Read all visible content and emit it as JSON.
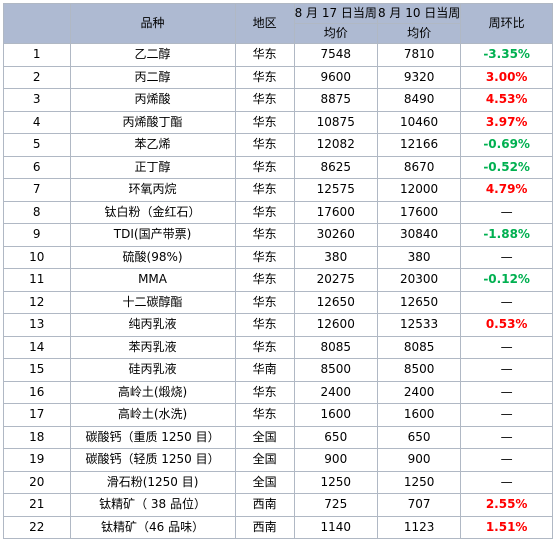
{
  "header": {
    "no": "",
    "product": "品种",
    "region": "地区",
    "week1_line1": "8 月 17 日当周",
    "week1_line2": "均价",
    "week2_line1": "8 月 10 日当周",
    "week2_line2": "均价",
    "change": "周环比"
  },
  "colors": {
    "up": "#ff0000",
    "down": "#00b050",
    "header_bg": "#aebad2"
  },
  "rows": [
    {
      "no": "1",
      "name": "乙二醇",
      "region": "华东",
      "p1": "7548",
      "p2": "7810",
      "chg": "-3.35%",
      "dir": "down"
    },
    {
      "no": "2",
      "name": "丙二醇",
      "region": "华东",
      "p1": "9600",
      "p2": "9320",
      "chg": "3.00%",
      "dir": "up"
    },
    {
      "no": "3",
      "name": "丙烯酸",
      "region": "华东",
      "p1": "8875",
      "p2": "8490",
      "chg": "4.53%",
      "dir": "up"
    },
    {
      "no": "4",
      "name": "丙烯酸丁酯",
      "region": "华东",
      "p1": "10875",
      "p2": "10460",
      "chg": "3.97%",
      "dir": "up"
    },
    {
      "no": "5",
      "name": "苯乙烯",
      "region": "华东",
      "p1": "12082",
      "p2": "12166",
      "chg": "-0.69%",
      "dir": "down"
    },
    {
      "no": "6",
      "name": "正丁醇",
      "region": "华东",
      "p1": "8625",
      "p2": "8670",
      "chg": "-0.52%",
      "dir": "down"
    },
    {
      "no": "7",
      "name": "环氧丙烷",
      "region": "华东",
      "p1": "12575",
      "p2": "12000",
      "chg": "4.79%",
      "dir": "up"
    },
    {
      "no": "8",
      "name": "钛白粉（金红石）",
      "region": "华东",
      "p1": "17600",
      "p2": "17600",
      "chg": "—",
      "dir": "flat"
    },
    {
      "no": "9",
      "name": "TDI(国产带票)",
      "region": "华东",
      "p1": "30260",
      "p2": "30840",
      "chg": "-1.88%",
      "dir": "down"
    },
    {
      "no": "10",
      "name": "硫酸(98%)",
      "region": "华东",
      "p1": "380",
      "p2": "380",
      "chg": "—",
      "dir": "flat"
    },
    {
      "no": "11",
      "name": "MMA",
      "region": "华东",
      "p1": "20275",
      "p2": "20300",
      "chg": "-0.12%",
      "dir": "down"
    },
    {
      "no": "12",
      "name": "十二碳醇酯",
      "region": "华东",
      "p1": "12650",
      "p2": "12650",
      "chg": "—",
      "dir": "flat"
    },
    {
      "no": "13",
      "name": "纯丙乳液",
      "region": "华东",
      "p1": "12600",
      "p2": "12533",
      "chg": "0.53%",
      "dir": "up"
    },
    {
      "no": "14",
      "name": "苯丙乳液",
      "region": "华东",
      "p1": "8085",
      "p2": "8085",
      "chg": "—",
      "dir": "flat"
    },
    {
      "no": "15",
      "name": "硅丙乳液",
      "region": "华南",
      "p1": "8500",
      "p2": "8500",
      "chg": "—",
      "dir": "flat"
    },
    {
      "no": "16",
      "name": "高岭土(煅烧)",
      "region": "华东",
      "p1": "2400",
      "p2": "2400",
      "chg": "—",
      "dir": "flat"
    },
    {
      "no": "17",
      "name": "高岭土(水洗)",
      "region": "华东",
      "p1": "1600",
      "p2": "1600",
      "chg": "—",
      "dir": "flat"
    },
    {
      "no": "18",
      "name": "碳酸钙（重质 1250 目）",
      "region": "全国",
      "p1": "650",
      "p2": "650",
      "chg": "—",
      "dir": "flat"
    },
    {
      "no": "19",
      "name": "碳酸钙（轻质 1250 目）",
      "region": "全国",
      "p1": "900",
      "p2": "900",
      "chg": "—",
      "dir": "flat"
    },
    {
      "no": "20",
      "name": "滑石粉(1250 目)",
      "region": "全国",
      "p1": "1250",
      "p2": "1250",
      "chg": "—",
      "dir": "flat"
    },
    {
      "no": "21",
      "name": "钛精矿（ 38 品位）",
      "region": "西南",
      "p1": "725",
      "p2": "707",
      "chg": "2.55%",
      "dir": "up"
    },
    {
      "no": "22",
      "name": "钛精矿（46 品味）",
      "region": "西南",
      "p1": "1140",
      "p2": "1123",
      "chg": "1.51%",
      "dir": "up"
    }
  ]
}
